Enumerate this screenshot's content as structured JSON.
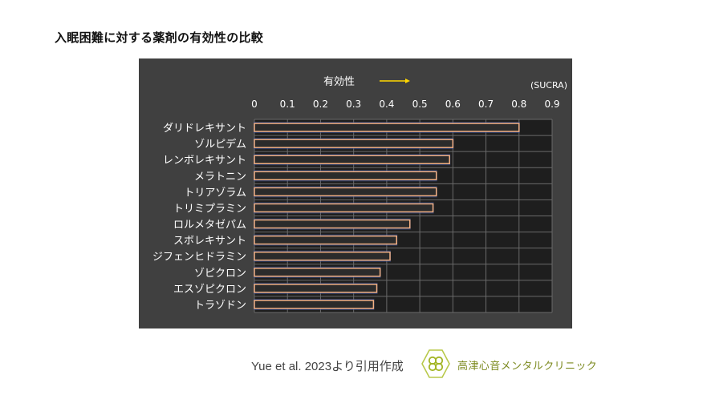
{
  "page": {
    "title": "入眠困難に対する薬剤の有効性の比較",
    "citation": "Yue et al. 2023より引用作成",
    "clinic_name": "高津心音メンタルクリニック",
    "logo_icon": "clinic-clover-icon"
  },
  "colors": {
    "panel_bg": "#404040",
    "plot_bg": "#1e1e1e",
    "grid": "#6a6a6a",
    "bar_fill": "#2b2b2b",
    "bar_stroke": "#f4b183",
    "bar_glow": "#2f4f9a",
    "arrow": "#ffd700",
    "text": "#ffffff",
    "brand": "#a3b526"
  },
  "chart_data": {
    "type": "bar",
    "orientation": "horizontal",
    "axis_heading": "有効性",
    "axis_heading_arrow": "right-arrow",
    "unit_label": "(SUCRA)",
    "categories": [
      "ダリドレキサント",
      "ゾルピデム",
      "レンボレキサント",
      "メラトニン",
      "トリアゾラム",
      "トリミプラミン",
      "ロルメタゼパム",
      "スボレキサント",
      "ジフェンヒドラミン",
      "ゾピクロン",
      "エスゾピクロン",
      "トラゾドン"
    ],
    "values": [
      0.8,
      0.6,
      0.59,
      0.55,
      0.55,
      0.54,
      0.47,
      0.43,
      0.41,
      0.38,
      0.37,
      0.36
    ],
    "xlim": [
      0,
      0.9
    ],
    "xticks": [
      "0",
      "0.1",
      "0.2",
      "0.3",
      "0.4",
      "0.5",
      "0.6",
      "0.7",
      "0.8",
      "0.9"
    ],
    "grid": true
  }
}
